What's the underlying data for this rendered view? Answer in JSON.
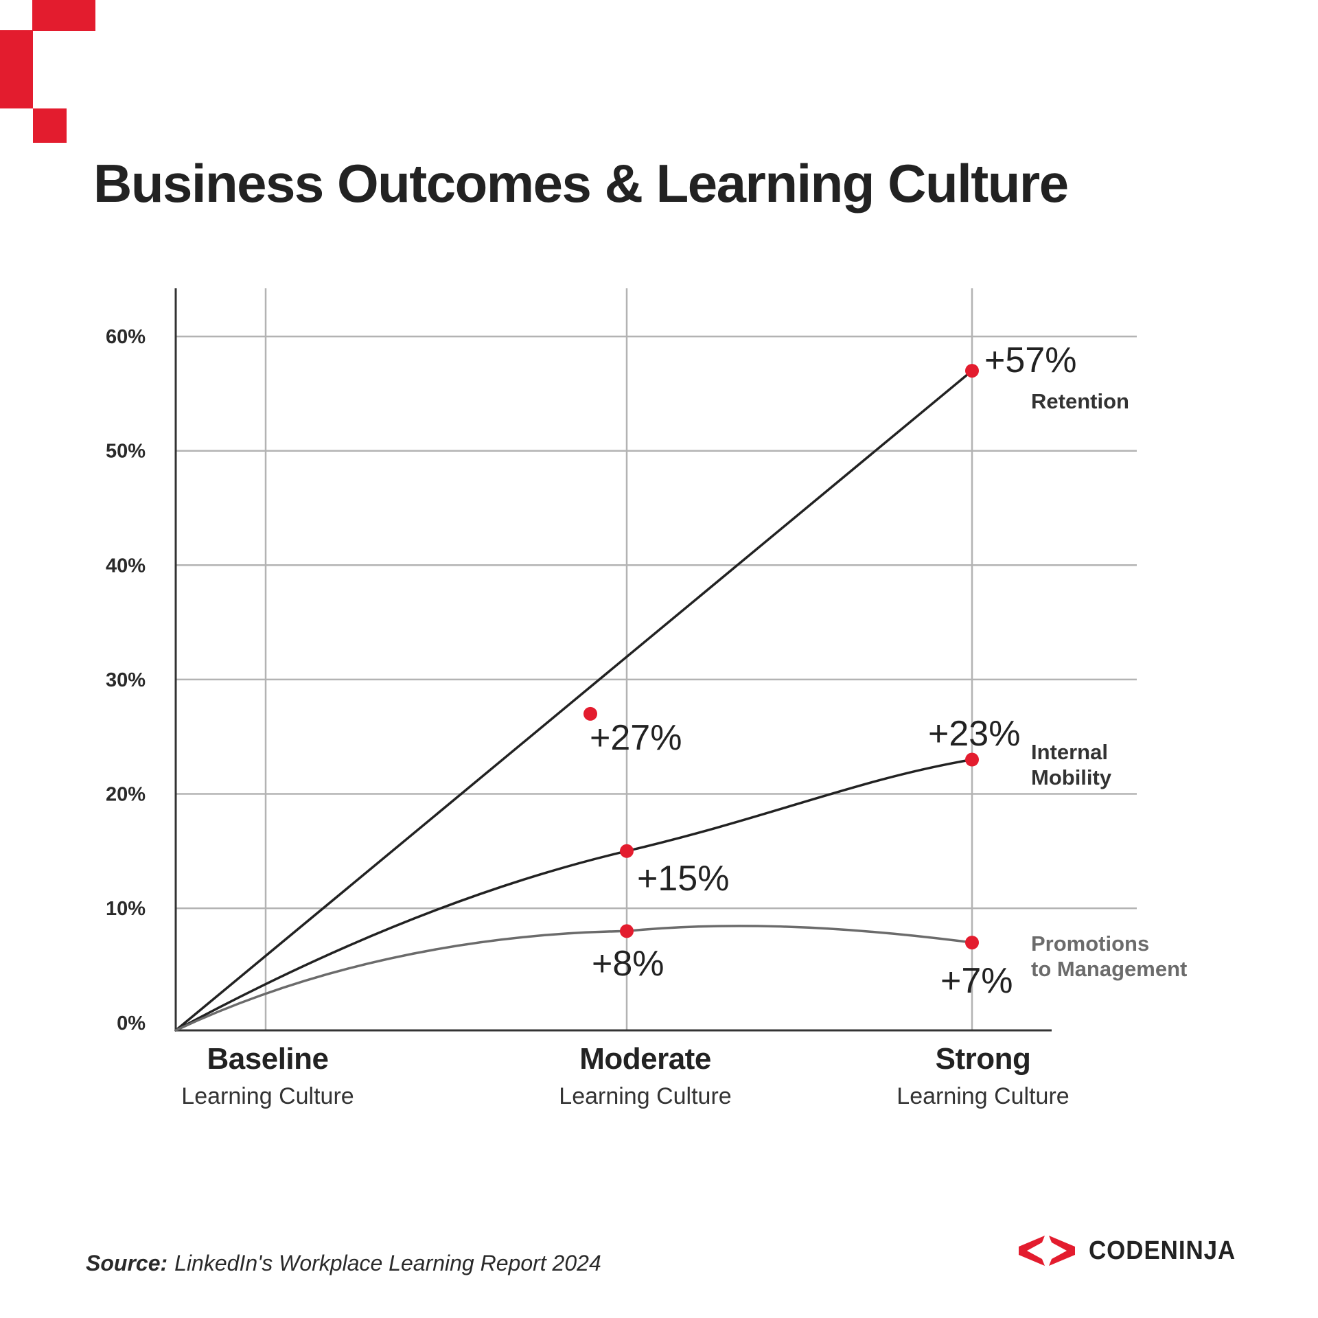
{
  "header": {
    "title": "Business Outcomes & Learning Culture"
  },
  "colors": {
    "accent": "#e31c2e",
    "line_dark": "#222222",
    "line_gray": "#6b6b6b",
    "grid": "#b3b3b3",
    "axis": "#333333"
  },
  "chart_data": {
    "type": "line",
    "title": "Business Outcomes & Learning Culture",
    "xlabel": "",
    "ylabel": "",
    "ylim": [
      0,
      60
    ],
    "yticks": [
      "0%",
      "10%",
      "20%",
      "30%",
      "40%",
      "50%",
      "60%"
    ],
    "grid": true,
    "categories": [
      {
        "label": "Baseline",
        "sublabel": "Learning Culture"
      },
      {
        "label": "Moderate",
        "sublabel": "Learning Culture"
      },
      {
        "label": "Strong",
        "sublabel": "Learning Culture"
      }
    ],
    "series": [
      {
        "name": "Retention",
        "label_lines": [
          "Retention"
        ],
        "color": "#222222",
        "label_color": "#333333",
        "values": [
          0,
          27,
          57
        ],
        "value_labels": [
          "",
          "+27%",
          "+57%"
        ]
      },
      {
        "name": "Internal Mobility",
        "label_lines": [
          "Internal",
          "Mobility"
        ],
        "color": "#222222",
        "label_color": "#333333",
        "values": [
          0,
          15,
          23
        ],
        "value_labels": [
          "",
          "+15%",
          "+23%"
        ]
      },
      {
        "name": "Promotions to Management",
        "label_lines": [
          "Promotions",
          "to Management"
        ],
        "color": "#6b6b6b",
        "label_color": "#6b6b6b",
        "values": [
          0,
          8,
          7
        ],
        "value_labels": [
          "",
          "+8%",
          "+7%"
        ]
      }
    ],
    "legend": "direct labels at right end of each line"
  },
  "footer": {
    "source_key": "Source:",
    "source_value": "LinkedIn's Workplace Learning Report 2024",
    "logo_text": "CODENINJA",
    "logo_icon": "codeninja-chevrons-icon"
  }
}
